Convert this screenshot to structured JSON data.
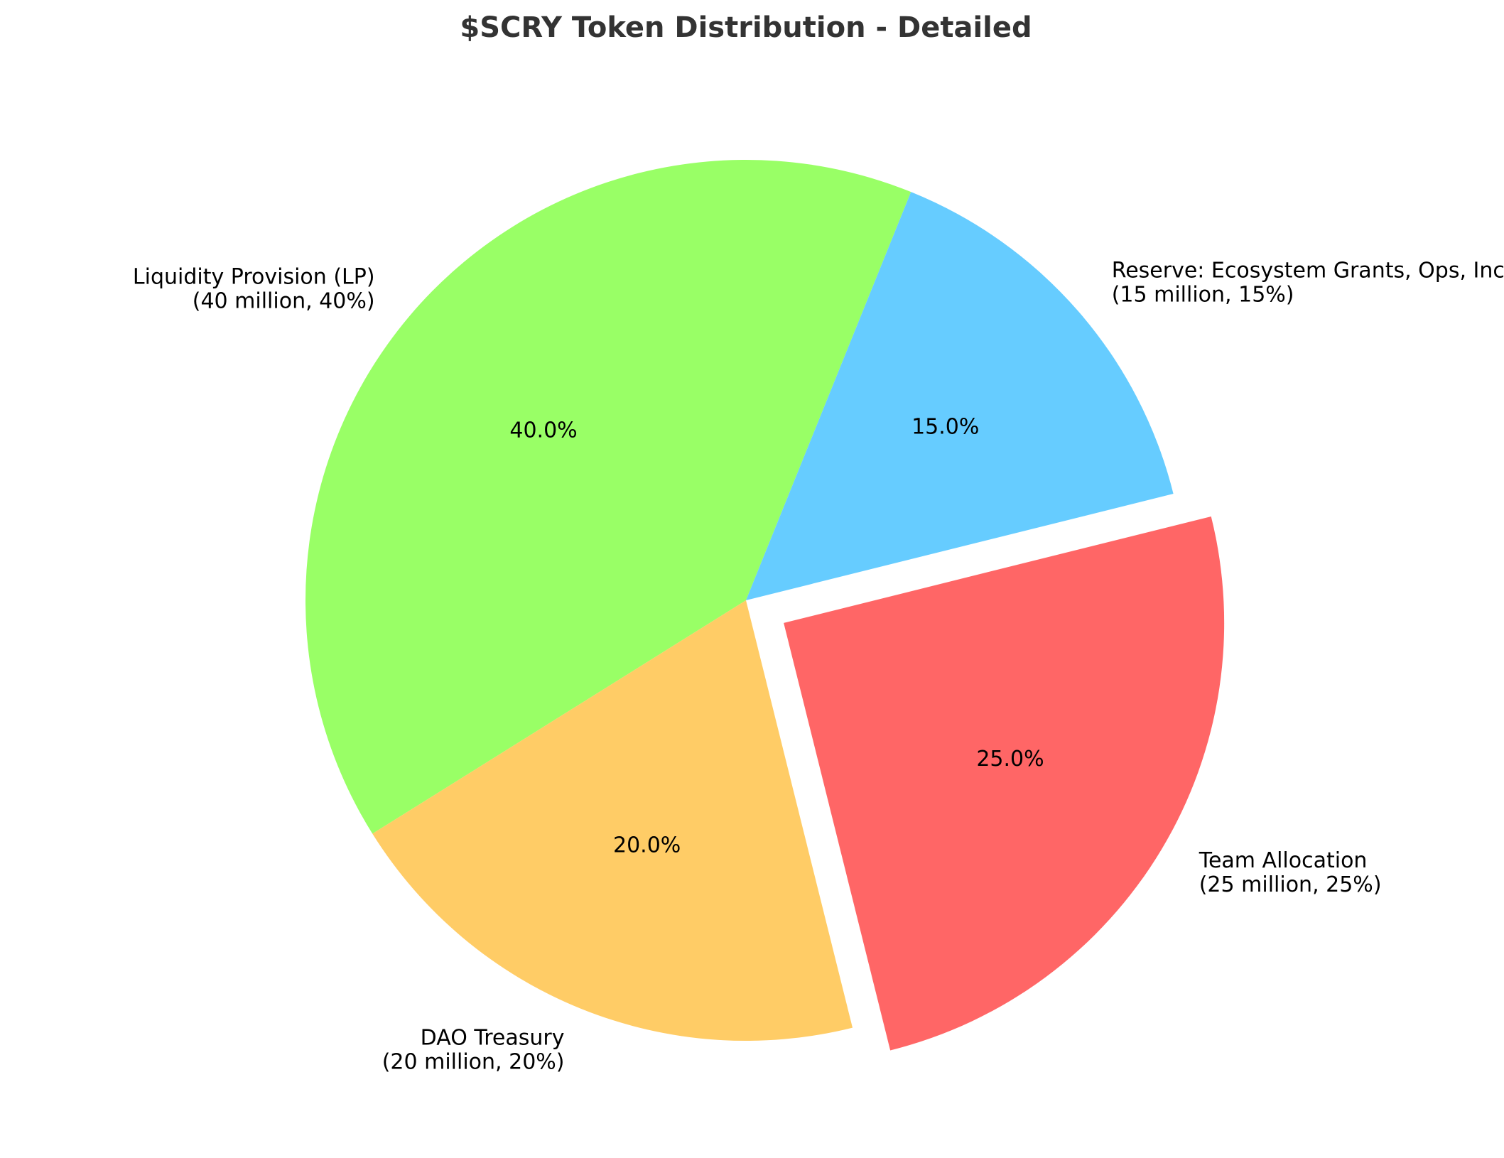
{
  "chart_data": {
    "type": "pie",
    "title": "$SCRY Token Distribution - Detailed",
    "slices": [
      {
        "name": "Liquidity Provision (LP)",
        "detail": "(40 million, 40%)",
        "value": 40,
        "pct_label": "40.0%",
        "color": "#99ff66",
        "exploded": false
      },
      {
        "name": "DAO Treasury",
        "detail": "(20 million, 20%)",
        "value": 20,
        "pct_label": "20.0%",
        "color": "#ffcc66",
        "exploded": false
      },
      {
        "name": "Team Allocation",
        "detail": "(25 million, 25%)",
        "value": 25,
        "pct_label": "25.0%",
        "color": "#ff6666",
        "exploded": true
      },
      {
        "name": "Reserve: Ecosystem Grants, Ops, Incentives",
        "detail": "(15 million, 15%)",
        "value": 15,
        "pct_label": "15.0%",
        "color": "#66ccff",
        "exploded": false
      }
    ]
  }
}
